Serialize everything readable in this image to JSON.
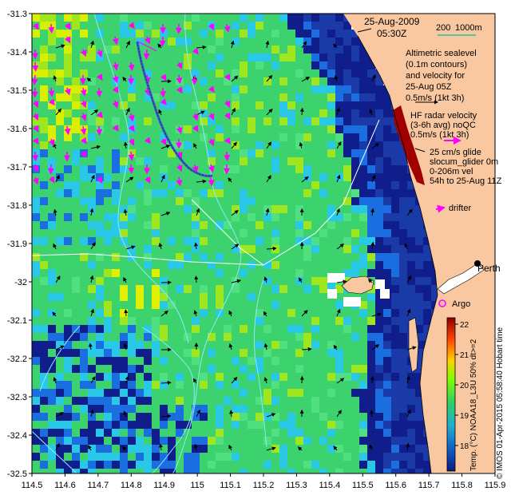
{
  "header": {
    "date": "25-Aug-2009",
    "time": "05:30Z",
    "scale_left": "200",
    "scale_right": "1000m"
  },
  "legend": {
    "altimetric_lines": [
      "Altimetric sealevel",
      "(0.1m contours)",
      "and velocity for",
      "25-Aug 05Z",
      "0.5m/s (1kt 3h)"
    ],
    "hf_lines": [
      "HF radar velocity",
      "(3-6h avg) noQC",
      "0.5m/s (1kt 3h)"
    ],
    "glider_lines": [
      "25 cm/s glide",
      "slocum_glider 0m",
      "0-206m vel",
      "54h to 25-Aug 11Z"
    ],
    "drifter": "drifter",
    "perth": "Perth",
    "argo": "Argo"
  },
  "colorbar": {
    "ticks": [
      "22",
      "21",
      "20",
      "19",
      "18"
    ],
    "label": "Temp. (°C) NOAA18_L3U 50% dt>=2",
    "colors": [
      "#8b0000",
      "#ff4500",
      "#ffd000",
      "#7fff00",
      "#2fd060",
      "#20b0d0",
      "#1060c8",
      "#0a1a80"
    ]
  },
  "credit": "© IMOS 01-Apr-2015 05:58:40 Hobart time",
  "axes": {
    "x_ticks": [
      "114.5",
      "114.6",
      "114.7",
      "114.8",
      "114.9",
      "115",
      "115.1",
      "115.2",
      "115.3",
      "115.4",
      "115.5",
      "115.6",
      "115.7",
      "115.8",
      "115.9"
    ],
    "y_ticks": [
      "-31.3",
      "-31.4",
      "-31.5",
      "-31.6",
      "-31.7",
      "-31.8",
      "-31.9",
      "-32",
      "-32.1",
      "-32.2",
      "-32.3",
      "-32.4",
      "-32.5"
    ],
    "x_range": [
      114.5,
      115.9
    ],
    "y_range": [
      -32.5,
      -31.3
    ]
  },
  "palette": {
    "land": "#fac8a0",
    "deep": "#101e8c",
    "mid": "#1a6ee0",
    "green": "#3cd26e",
    "warm": "#a0e61e",
    "cyan": "#28c8e6",
    "magenta": "#ff00ff",
    "glider": "#3a5abf",
    "contour": "#8fe8ff",
    "coast_red": "#a00000"
  }
}
